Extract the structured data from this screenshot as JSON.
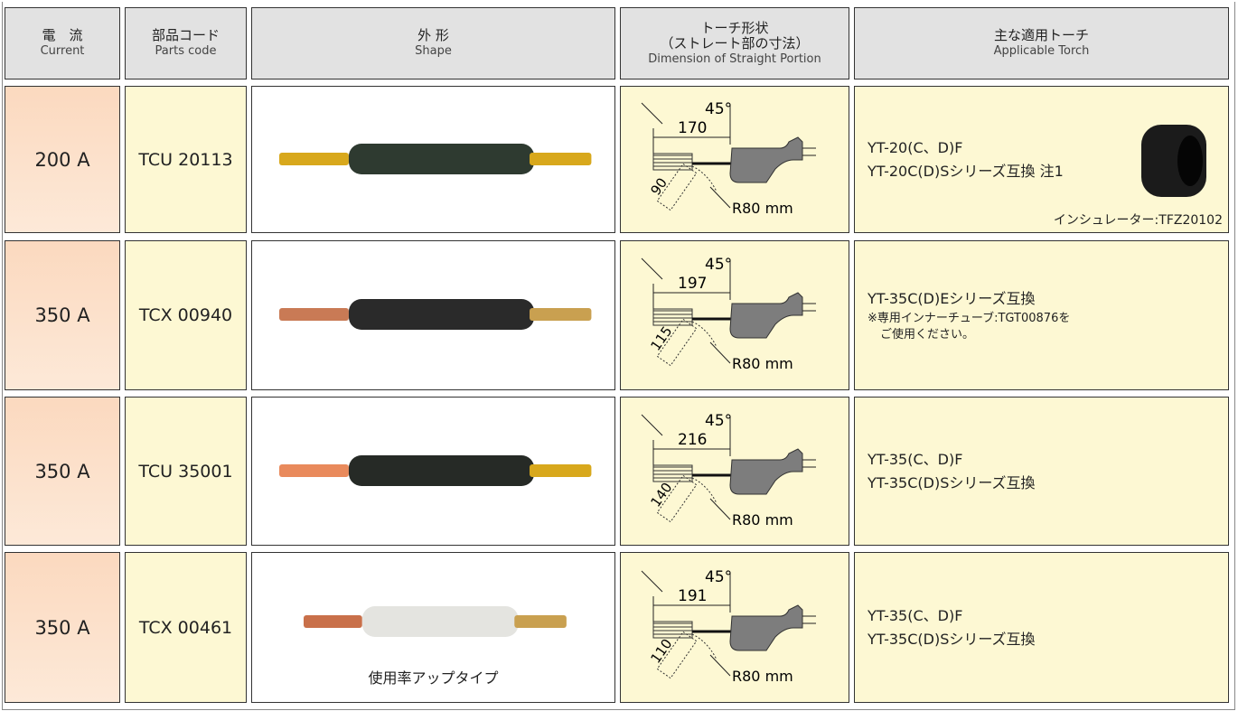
{
  "table": {
    "headers": [
      {
        "ja": "電　流",
        "en": "Current"
      },
      {
        "ja": "部品コード",
        "en": "Parts code"
      },
      {
        "ja": "外 形",
        "en": "Shape"
      },
      {
        "ja": "トーチ形状",
        "ja2": "（ストレート部の寸法）",
        "en": "Dimension of Straight Portion"
      },
      {
        "ja": "主な適用トーチ",
        "en": "Applicable Torch"
      }
    ],
    "rows": [
      {
        "current": "200 A",
        "code": "TCU 20113",
        "angle": "45°",
        "length": "170",
        "offset": "90",
        "radius": "R80 mm",
        "torch": [
          "YT-20(C、D)F",
          "YT-20C(D)Sシリーズ互換 注1"
        ],
        "note": "インシュレーター:TFZ20102"
      },
      {
        "current": "350 A",
        "code": "TCX 00940",
        "angle": "45°",
        "length": "197",
        "offset": "115",
        "radius": "R80 mm",
        "torch": [
          "YT-35C(D)Eシリーズ互換"
        ],
        "remarks": [
          "※専用インナーチューブ:TGT00876を",
          "ご使用ください。"
        ]
      },
      {
        "current": "350 A",
        "code": "TCU 35001",
        "angle": "45°",
        "length": "216",
        "offset": "140",
        "radius": "R80 mm",
        "torch": [
          "YT-35(C、D)F",
          "YT-35C(D)Sシリーズ互換"
        ]
      },
      {
        "current": "350 A",
        "code": "TCX 00461",
        "caption": "使用率アップタイプ",
        "angle": "45°",
        "length": "191",
        "offset": "110",
        "radius": "R80 mm",
        "torch": [
          "YT-35(C、D)F",
          "YT-35C(D)Sシリーズ互換"
        ]
      }
    ]
  }
}
